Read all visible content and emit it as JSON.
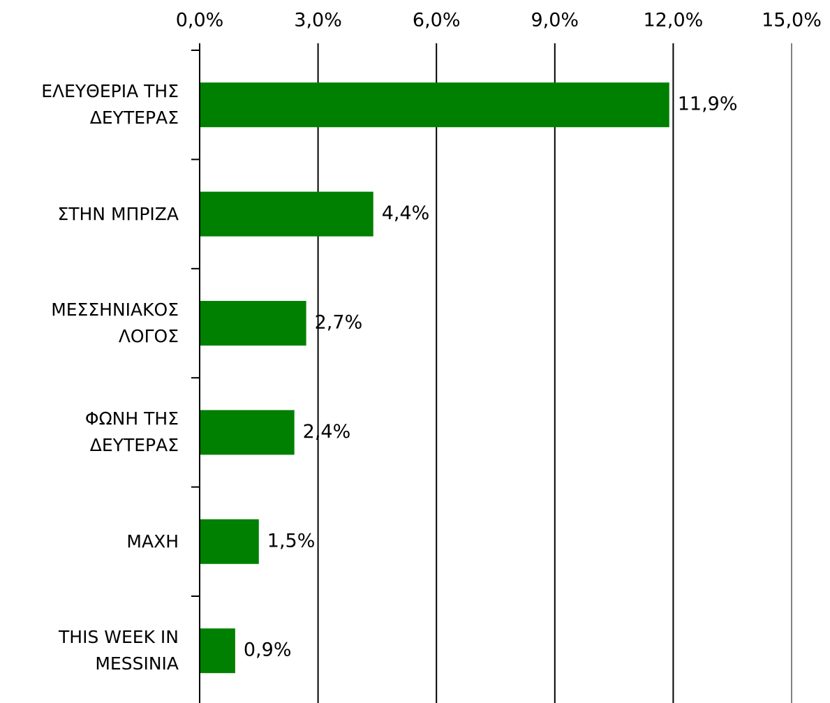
{
  "chart_data": {
    "type": "bar",
    "orientation": "horizontal",
    "categories": [
      "ΕΛΕΥΘΕΡΙΑ ΤΗΣ ΔΕΥΤΕΡΑΣ",
      "ΣΤΗΝ ΜΠΡΙΖΑ",
      "ΜΕΣΣΗΝΙΑΚΟΣ ΛΟΓΟΣ",
      "ΦΩΝΗ ΤΗΣ ΔΕΥΤΕΡΑΣ",
      "ΜΑΧΗ",
      "THIS WEEK IN MESSINIA"
    ],
    "values": [
      11.9,
      4.4,
      2.7,
      2.4,
      1.5,
      0.9
    ],
    "value_labels": [
      "11,9%",
      "4,4%",
      "2,7%",
      "2,4%",
      "1,5%",
      "0,9%"
    ],
    "color": "#008000",
    "xlim": [
      0,
      15
    ],
    "xticks": [
      {
        "value": 0,
        "label": "0,0%"
      },
      {
        "value": 3,
        "label": "3,0%"
      },
      {
        "value": 6,
        "label": "6,0%"
      },
      {
        "value": 9,
        "label": "9,0%"
      },
      {
        "value": 12,
        "label": "12,0%"
      },
      {
        "value": 15,
        "label": "15,0%"
      }
    ],
    "grid": true
  }
}
